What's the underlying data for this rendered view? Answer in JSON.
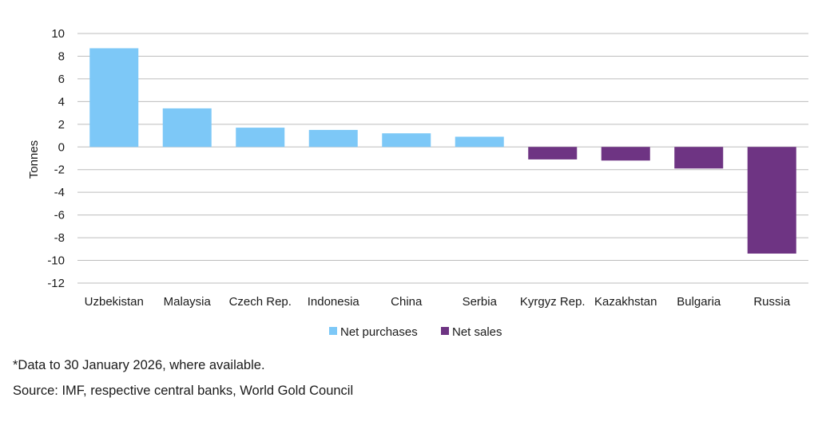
{
  "chart_data": {
    "type": "bar",
    "title": "",
    "xlabel": "",
    "ylabel": "Tonnes",
    "ylim": [
      -12,
      10
    ],
    "yticks": [
      10,
      8,
      6,
      4,
      2,
      0,
      -2,
      -4,
      -6,
      -8,
      -10,
      -12
    ],
    "grid": true,
    "legend_position": "bottom-center",
    "categories": [
      "Uzbekistan",
      "Malaysia",
      "Czech Rep.",
      "Indonesia",
      "China",
      "Serbia",
      "Kyrgyz Rep.",
      "Kazakhstan",
      "Bulgaria",
      "Russia"
    ],
    "values": [
      8.7,
      3.4,
      1.7,
      1.5,
      1.2,
      0.9,
      -1.1,
      -1.2,
      -1.9,
      -9.4
    ],
    "series": [
      {
        "name": "Net purchases",
        "color": "#7dc8f7"
      },
      {
        "name": "Net sales",
        "color": "#6e3483"
      }
    ]
  },
  "notes": {
    "footnote": "*Data to 30 January 2026, where available.",
    "source": "Source: IMF, respective central banks, World Gold Council"
  }
}
